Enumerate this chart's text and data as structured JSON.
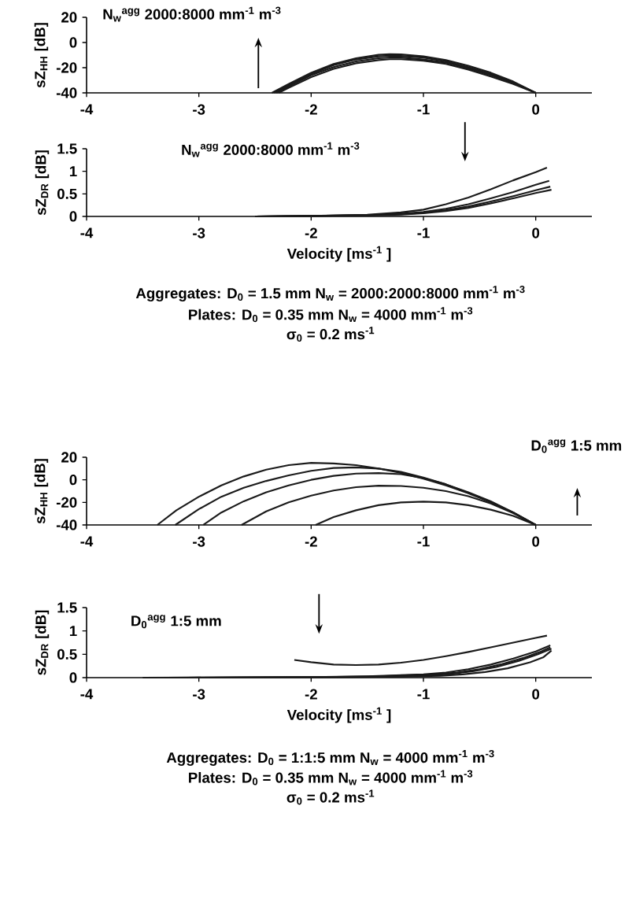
{
  "chart_data": [
    {
      "type": "line",
      "ylabel": "sZ$_{HH}$ [dB]",
      "xlim": [
        -4,
        0.5
      ],
      "ylim": [
        -40,
        20
      ],
      "xticks": [
        -4,
        -3,
        -2,
        -1,
        0
      ],
      "yticks": [
        -40,
        -20,
        0,
        20
      ],
      "marker": "none",
      "annotations": [
        "N$_{w}$$^{agg}$ 2000:8000 mm$^{-1}$ m$^{-3}$"
      ],
      "series": [
        {
          "color": "#1a1a1a",
          "x": [
            -2.35,
            -2.2,
            -2.0,
            -1.8,
            -1.6,
            -1.4,
            -1.3,
            -1.2,
            -1.0,
            -0.8,
            -0.6,
            -0.4,
            -0.2,
            0
          ],
          "values": [
            -40,
            -33,
            -24,
            -17,
            -12.5,
            -9.8,
            -9.3,
            -9.5,
            -11,
            -14,
            -18.5,
            -24,
            -31,
            -40
          ]
        },
        {
          "color": "#1a1a1a",
          "x": [
            -2.33,
            -2.2,
            -2.0,
            -1.8,
            -1.6,
            -1.4,
            -1.3,
            -1.2,
            -1.0,
            -0.8,
            -0.6,
            -0.4,
            -0.2,
            0
          ],
          "values": [
            -40,
            -34,
            -25,
            -18,
            -13.5,
            -11,
            -10.5,
            -10.7,
            -12,
            -15,
            -19.5,
            -25,
            -31.5,
            -40
          ]
        },
        {
          "color": "#1a1a1a",
          "x": [
            -2.31,
            -2.2,
            -2.0,
            -1.8,
            -1.6,
            -1.4,
            -1.3,
            -1.2,
            -1.0,
            -0.8,
            -0.6,
            -0.4,
            -0.2,
            0
          ],
          "values": [
            -40,
            -35,
            -26,
            -19.5,
            -15,
            -12.5,
            -12,
            -12,
            -13.5,
            -16,
            -20.5,
            -26,
            -32,
            -40
          ]
        },
        {
          "color": "#1a1a1a",
          "x": [
            -2.29,
            -2.2,
            -2.0,
            -1.8,
            -1.6,
            -1.4,
            -1.3,
            -1.2,
            -1.0,
            -0.8,
            -0.6,
            -0.4,
            -0.2,
            0
          ],
          "values": [
            -40,
            -36,
            -27.5,
            -21,
            -16.5,
            -14,
            -13.3,
            -13.3,
            -14.5,
            -17,
            -21.5,
            -27,
            -33,
            -40
          ]
        }
      ]
    },
    {
      "type": "line",
      "xlabel": "Velocity [ms$^{-1}$ ]",
      "ylabel": "sZ$_{DR}$ [dB]",
      "xlim": [
        -4,
        0.5
      ],
      "ylim": [
        0,
        1.5
      ],
      "xticks": [
        -4,
        -3,
        -2,
        -1,
        0
      ],
      "yticks": [
        0,
        0.5,
        1,
        1.5
      ],
      "marker": "none",
      "annotations": [
        "N$_{w}$$^{agg}$ 2000:8000 mm$^{-1}$ m$^{-3}$",
        "Aggregates: D$_{0}$ = 1.5 mm  N$_{w}$ = 2000:2000:8000 mm$^{-1}$ m$^{-3}$",
        "Plates: D$_{0}$ = 0.35 mm  N$_{w}$ = 4000 mm$^{-1}$ m$^{-3}$",
        "σ$_{0}$ = 0.2 ms$^{-1}$"
      ],
      "series": [
        {
          "color": "#1a1a1a",
          "x": [
            -2.5,
            -2.0,
            -1.5,
            -1.2,
            -1.0,
            -0.8,
            -0.6,
            -0.4,
            -0.2,
            0,
            0.1
          ],
          "values": [
            0,
            0.01,
            0.04,
            0.09,
            0.15,
            0.27,
            0.42,
            0.6,
            0.8,
            0.98,
            1.08
          ]
        },
        {
          "color": "#1a1a1a",
          "x": [
            -2.5,
            -2.0,
            -1.5,
            -1.2,
            -1.0,
            -0.8,
            -0.6,
            -0.4,
            -0.2,
            0,
            0.12
          ],
          "values": [
            0,
            0.01,
            0.03,
            0.06,
            0.1,
            0.17,
            0.27,
            0.4,
            0.54,
            0.7,
            0.79
          ]
        },
        {
          "color": "#1a1a1a",
          "x": [
            -2.5,
            -2.0,
            -1.5,
            -1.2,
            -1.0,
            -0.8,
            -0.6,
            -0.4,
            -0.2,
            0,
            0.13
          ],
          "values": [
            0,
            0.01,
            0.03,
            0.05,
            0.08,
            0.14,
            0.22,
            0.33,
            0.45,
            0.58,
            0.66
          ]
        },
        {
          "color": "#1a1a1a",
          "x": [
            -2.5,
            -2.0,
            -1.5,
            -1.2,
            -1.0,
            -0.8,
            -0.6,
            -0.4,
            -0.2,
            0,
            0.14
          ],
          "values": [
            0,
            0.01,
            0.02,
            0.04,
            0.07,
            0.12,
            0.19,
            0.29,
            0.4,
            0.52,
            0.59
          ]
        }
      ]
    },
    {
      "type": "line",
      "ylabel": "sZ$_{HH}$ [dB]",
      "xlim": [
        -4,
        0.5
      ],
      "ylim": [
        -40,
        20
      ],
      "xticks": [
        -4,
        -3,
        -2,
        -1,
        0
      ],
      "yticks": [
        -40,
        -20,
        0,
        20
      ],
      "marker": "none",
      "annotations": [
        "D$_{0}$$^{agg}$ 1:5 mm"
      ],
      "series": [
        {
          "color": "#1a1a1a",
          "x": [
            -1.96,
            -1.8,
            -1.6,
            -1.4,
            -1.2,
            -1.0,
            -0.8,
            -0.6,
            -0.4,
            -0.2,
            0
          ],
          "values": [
            -40,
            -33,
            -27,
            -22.5,
            -20,
            -19.3,
            -20,
            -22.5,
            -26.5,
            -32,
            -40
          ]
        },
        {
          "color": "#1a1a1a",
          "x": [
            -2.62,
            -2.4,
            -2.2,
            -2.0,
            -1.8,
            -1.6,
            -1.4,
            -1.2,
            -1.0,
            -0.8,
            -0.6,
            -0.4,
            -0.2,
            0
          ],
          "values": [
            -40,
            -28,
            -20,
            -14,
            -9.5,
            -6.5,
            -5.2,
            -5.5,
            -7,
            -10,
            -14.5,
            -21,
            -29.5,
            -40
          ]
        },
        {
          "color": "#1a1a1a",
          "x": [
            -2.96,
            -2.8,
            -2.6,
            -2.4,
            -2.2,
            -2.0,
            -1.8,
            -1.6,
            -1.4,
            -1.2,
            -1.0,
            -0.8,
            -0.6,
            -0.4,
            -0.2,
            0
          ],
          "values": [
            -40,
            -29,
            -19,
            -11,
            -5,
            0,
            3.5,
            5.5,
            6,
            5,
            1.5,
            -4,
            -11,
            -19,
            -29,
            -40
          ]
        },
        {
          "color": "#1a1a1a",
          "x": [
            -3.21,
            -3.0,
            -2.8,
            -2.6,
            -2.4,
            -2.2,
            -2.0,
            -1.8,
            -1.6,
            -1.4,
            -1.2,
            -1.0,
            -0.8,
            -0.6,
            -0.4,
            -0.2,
            0
          ],
          "values": [
            -40,
            -26,
            -15,
            -7,
            -1,
            4,
            8,
            10.5,
            11,
            10,
            7,
            2,
            -4,
            -11.5,
            -19.5,
            -29,
            -40
          ]
        },
        {
          "color": "#1a1a1a",
          "x": [
            -3.37,
            -3.2,
            -3.0,
            -2.8,
            -2.6,
            -2.4,
            -2.2,
            -2.0,
            -1.8,
            -1.6,
            -1.4,
            -1.2,
            -1.0,
            -0.8,
            -0.6,
            -0.4,
            -0.2,
            0
          ],
          "values": [
            -40,
            -27,
            -15,
            -5,
            3,
            9,
            13,
            15,
            14.5,
            13,
            10,
            6,
            1,
            -5,
            -12,
            -20,
            -29,
            -40
          ]
        }
      ]
    },
    {
      "type": "line",
      "xlabel": "Velocity [ms$^{-1}$ ]",
      "ylabel": "sZ$_{DR}$ [dB]",
      "xlim": [
        -4,
        0.5
      ],
      "ylim": [
        0,
        1.5
      ],
      "xticks": [
        -4,
        -3,
        -2,
        -1,
        0
      ],
      "yticks": [
        0,
        0.5,
        1,
        1.5
      ],
      "marker": "none",
      "annotations": [
        "D$_{0}$$^{agg}$ 1:5 mm",
        "Aggregates: D$_{0}$ = 1:1:5 mm  N$_{w}$ = 4000 mm$^{-1}$ m$^{-3}$",
        "Plates: D$_{0}$ = 0.35 mm  N$_{w}$ = 4000 mm$^{-1}$ m$^{-3}$",
        "σ$_{0}$ = 0.2 ms$^{-1}$"
      ],
      "series": [
        {
          "color": "#1a1a1a",
          "x": [
            -2.15,
            -2.0,
            -1.8,
            -1.6,
            -1.4,
            -1.2,
            -1.0,
            -0.8,
            -0.6,
            -0.4,
            -0.2,
            0,
            0.1
          ],
          "values": [
            0.38,
            0.33,
            0.28,
            0.27,
            0.28,
            0.32,
            0.38,
            0.46,
            0.55,
            0.65,
            0.75,
            0.85,
            0.9
          ]
        },
        {
          "color": "#1a1a1a",
          "x": [
            -3.5,
            -2.0,
            -1.5,
            -1.0,
            -0.8,
            -0.6,
            -0.4,
            -0.2,
            0,
            0.13
          ],
          "values": [
            0,
            0.01,
            0.03,
            0.07,
            0.11,
            0.18,
            0.28,
            0.41,
            0.56,
            0.69
          ]
        },
        {
          "color": "#1a1a1a",
          "x": [
            -3.3,
            -1.9,
            -1.4,
            -0.9,
            -0.7,
            -0.5,
            -0.3,
            -0.1,
            0.05,
            0.13
          ],
          "values": [
            0,
            0.01,
            0.03,
            0.07,
            0.11,
            0.18,
            0.29,
            0.43,
            0.56,
            0.65
          ]
        },
        {
          "color": "#1a1a1a",
          "x": [
            -3.1,
            -1.8,
            -1.3,
            -0.95,
            -0.75,
            -0.55,
            -0.35,
            -0.15,
            0.02,
            0.14
          ],
          "values": [
            0,
            0.01,
            0.02,
            0.05,
            0.08,
            0.14,
            0.23,
            0.36,
            0.5,
            0.62
          ]
        },
        {
          "color": "#1a1a1a",
          "x": [
            -2.9,
            -1.7,
            -1.2,
            -0.85,
            -0.65,
            -0.45,
            -0.25,
            -0.05,
            0.07,
            0.14
          ],
          "values": [
            0,
            0.01,
            0.02,
            0.04,
            0.07,
            0.12,
            0.2,
            0.33,
            0.44,
            0.58
          ]
        }
      ]
    }
  ]
}
